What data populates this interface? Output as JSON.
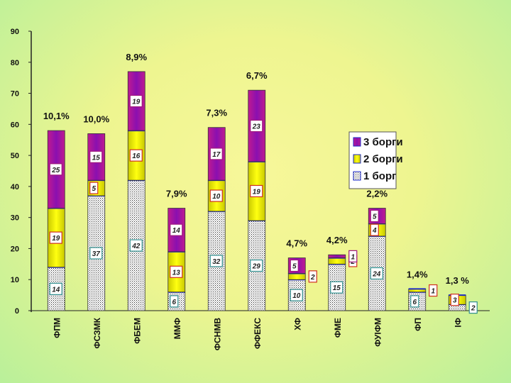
{
  "chart_data": {
    "type": "bar",
    "stacked": true,
    "title": "",
    "xlabel": "",
    "ylabel": "",
    "ylim": [
      0,
      90
    ],
    "yticks": [
      "0",
      "10",
      "20",
      "30",
      "40",
      "50",
      "60",
      "70",
      "80",
      "90"
    ],
    "grid": false,
    "legend_position": "right",
    "categories": [
      "ФПМ",
      "ФСЗМК",
      "ФБЕМ",
      "ММФ",
      "ФСНМВ",
      "ФФЕКС",
      "ХФ",
      "ФМЕ",
      "ФУІФМ",
      "ФП",
      "ІФ"
    ],
    "series": [
      {
        "name": "1 борг",
        "color": "#ffffff",
        "values": [
          14,
          37,
          42,
          6,
          32,
          29,
          10,
          15,
          24,
          6,
          2
        ],
        "labels": [
          "14",
          "37",
          "42",
          "6",
          "32",
          "29",
          "10",
          "15",
          "24",
          "6",
          "2"
        ]
      },
      {
        "name": "2 борги",
        "color": "#e8e800",
        "values": [
          19,
          5,
          16,
          13,
          10,
          19,
          2,
          2,
          4,
          1,
          3
        ],
        "labels": [
          "19",
          "5",
          "16",
          "13",
          "10",
          "19",
          "2",
          "2",
          "4",
          "1",
          "3"
        ]
      },
      {
        "name": "3 борги",
        "color": "#b01aa0",
        "values": [
          25,
          15,
          19,
          14,
          17,
          23,
          5,
          1,
          5,
          0,
          0
        ],
        "labels": [
          "25",
          "15",
          "19",
          "14",
          "17",
          "23",
          "5",
          "1",
          "5",
          "",
          ""
        ]
      }
    ],
    "percent_labels": [
      "10,1%",
      "10,0%",
      "8,9%",
      "7,9%",
      "7,3%",
      "6,7%",
      "4,7%",
      "4,2%",
      "2,2%",
      "1,4%",
      "1,3 %"
    ]
  }
}
